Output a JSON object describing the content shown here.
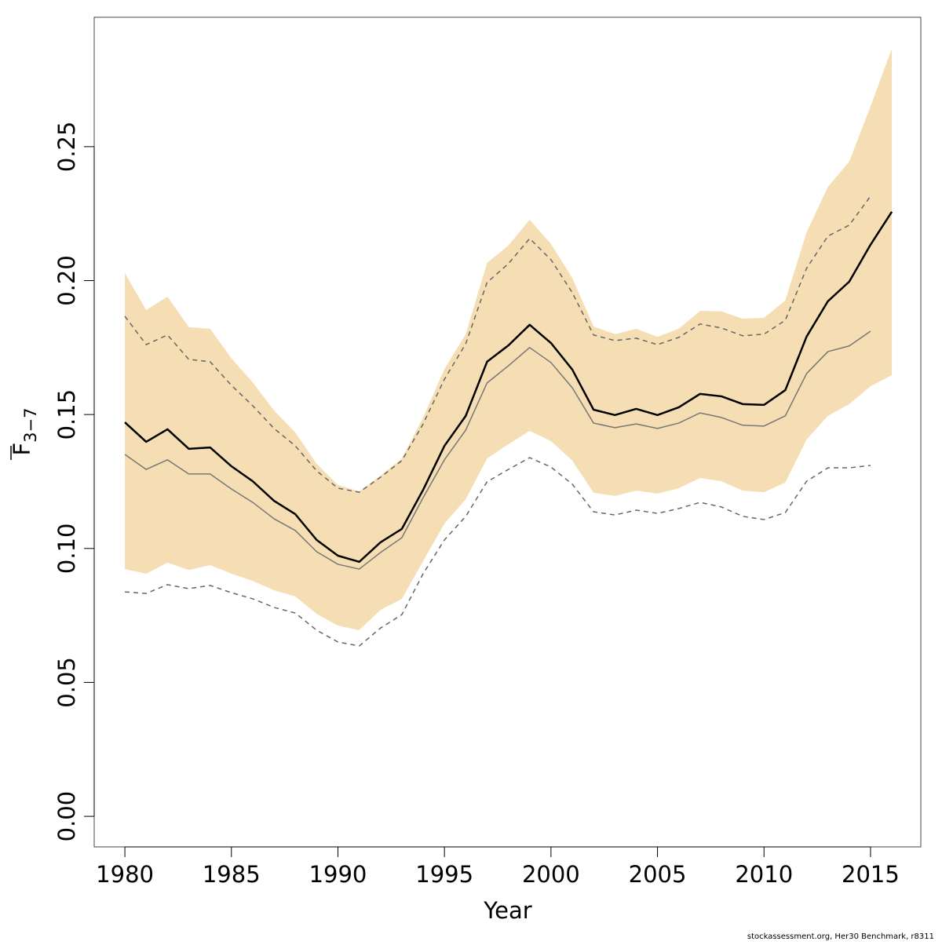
{
  "chart_data": {
    "type": "line",
    "xlabel": "Year",
    "ylabel": {
      "symbol": "F",
      "subscript": "3−7"
    },
    "footnote": "stockassessment.org, Her30 Benchmark, r8311",
    "x": [
      1980,
      1981,
      1982,
      1983,
      1984,
      1985,
      1986,
      1987,
      1988,
      1989,
      1990,
      1991,
      1992,
      1993,
      1994,
      1995,
      1996,
      1997,
      1998,
      1999,
      2000,
      2001,
      2002,
      2003,
      2004,
      2005,
      2006,
      2007,
      2008,
      2009,
      2010,
      2011,
      2012,
      2013,
      2014,
      2015,
      2016
    ],
    "band": {
      "color": "#f5deb3",
      "upper": [
        0.2028,
        0.189,
        0.194,
        0.1826,
        0.182,
        0.171,
        0.162,
        0.1515,
        0.1433,
        0.1316,
        0.1237,
        0.1213,
        0.1272,
        0.1336,
        0.1489,
        0.167,
        0.18,
        0.2066,
        0.2131,
        0.2227,
        0.2137,
        0.201,
        0.1829,
        0.18,
        0.182,
        0.179,
        0.182,
        0.1887,
        0.1885,
        0.1858,
        0.1861,
        0.1926,
        0.218,
        0.235,
        0.2444,
        0.265,
        0.2866
      ],
      "lower": [
        0.0923,
        0.0906,
        0.0947,
        0.092,
        0.0938,
        0.0906,
        0.0879,
        0.0844,
        0.0821,
        0.0756,
        0.0712,
        0.0695,
        0.0771,
        0.0812,
        0.0953,
        0.1093,
        0.1184,
        0.1336,
        0.1389,
        0.1439,
        0.1401,
        0.1328,
        0.1208,
        0.1196,
        0.1216,
        0.1205,
        0.1225,
        0.1263,
        0.1251,
        0.1216,
        0.121,
        0.1246,
        0.1407,
        0.1495,
        0.1539,
        0.1606,
        0.1647
      ]
    },
    "series": [
      {
        "color": "#666666",
        "width": 1.5,
        "linestyle": "dashed",
        "values": [
          0.1867,
          0.1761,
          0.1797,
          0.1706,
          0.1697,
          0.1609,
          0.1533,
          0.1448,
          0.1383,
          0.129,
          0.1225,
          0.121,
          0.1266,
          0.1328,
          0.1465,
          0.1632,
          0.1764,
          0.1993,
          0.2063,
          0.2157,
          0.2078,
          0.1955,
          0.1797,
          0.1776,
          0.1785,
          0.1761,
          0.1788,
          0.1838,
          0.1823,
          0.1794,
          0.18,
          0.1852,
          0.2046,
          0.2166,
          0.2207,
          0.2315,
          null
        ]
      },
      {
        "color": "#666666",
        "width": 1.5,
        "linestyle": "dashed",
        "values": [
          0.0838,
          0.0832,
          0.0865,
          0.085,
          0.0862,
          0.0835,
          0.0812,
          0.078,
          0.0759,
          0.0695,
          0.0651,
          0.0636,
          0.0703,
          0.0753,
          0.0906,
          0.1032,
          0.112,
          0.1249,
          0.1295,
          0.1339,
          0.1304,
          0.124,
          0.1137,
          0.1125,
          0.1143,
          0.1131,
          0.1149,
          0.1172,
          0.1155,
          0.112,
          0.1108,
          0.1134,
          0.1251,
          0.1301,
          0.1301,
          0.131,
          null
        ]
      },
      {
        "color": "#777777",
        "width": 1.5,
        "linestyle": "solid",
        "values": [
          0.1351,
          0.1295,
          0.1331,
          0.1278,
          0.1278,
          0.1222,
          0.1172,
          0.1111,
          0.1067,
          0.0988,
          0.0941,
          0.0923,
          0.0985,
          0.104,
          0.119,
          0.1331,
          0.1442,
          0.1618,
          0.1682,
          0.175,
          0.1694,
          0.16,
          0.1468,
          0.1451,
          0.1465,
          0.1448,
          0.1468,
          0.1506,
          0.1489,
          0.146,
          0.1457,
          0.1495,
          0.1653,
          0.1735,
          0.1756,
          0.1811,
          null
        ]
      },
      {
        "color": "#000000",
        "width": 2.5,
        "linestyle": "solid",
        "values": [
          0.1471,
          0.1398,
          0.1445,
          0.1372,
          0.1377,
          0.1307,
          0.1251,
          0.1178,
          0.1128,
          0.1032,
          0.0973,
          0.095,
          0.1023,
          0.1073,
          0.1219,
          0.1383,
          0.1495,
          0.1697,
          0.1758,
          0.1835,
          0.1767,
          0.1668,
          0.1518,
          0.1498,
          0.1521,
          0.1498,
          0.1527,
          0.1577,
          0.1568,
          0.1539,
          0.1536,
          0.1591,
          0.1791,
          0.1923,
          0.1996,
          0.2134,
          0.2257
        ]
      }
    ],
    "xlim": [
      1978.56,
      2017.36
    ],
    "ylim": [
      -0.0114,
      0.2983
    ],
    "xticks": [
      1980,
      1985,
      1990,
      1995,
      2000,
      2005,
      2010,
      2015
    ],
    "yticks": [
      {
        "value": 0,
        "label": "0.00"
      },
      {
        "value": 0.05,
        "label": "0.05"
      },
      {
        "value": 0.1,
        "label": "0.10"
      },
      {
        "value": 0.15,
        "label": "0.15"
      },
      {
        "value": 0.2,
        "label": "0.20"
      },
      {
        "value": 0.25,
        "label": "0.25"
      }
    ]
  }
}
